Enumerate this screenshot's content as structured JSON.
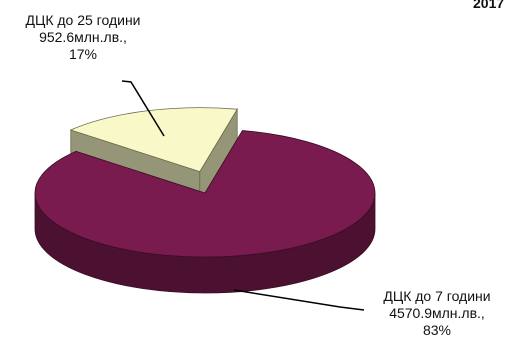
{
  "title": "2017",
  "chart_data": {
    "type": "pie",
    "categories": [
      "ДЦК до 7 години",
      "ДЦК до 25 години"
    ],
    "values": [
      4570.9,
      952.6
    ],
    "percents": [
      83,
      17
    ],
    "value_labels": [
      "4570.9млн.лв.,",
      "952.6млн.лв.,"
    ],
    "percent_labels": [
      "83%",
      "17%"
    ],
    "colors": [
      "#7a1b4f",
      "#f8f8c8"
    ],
    "exploded": [
      false,
      true
    ]
  }
}
